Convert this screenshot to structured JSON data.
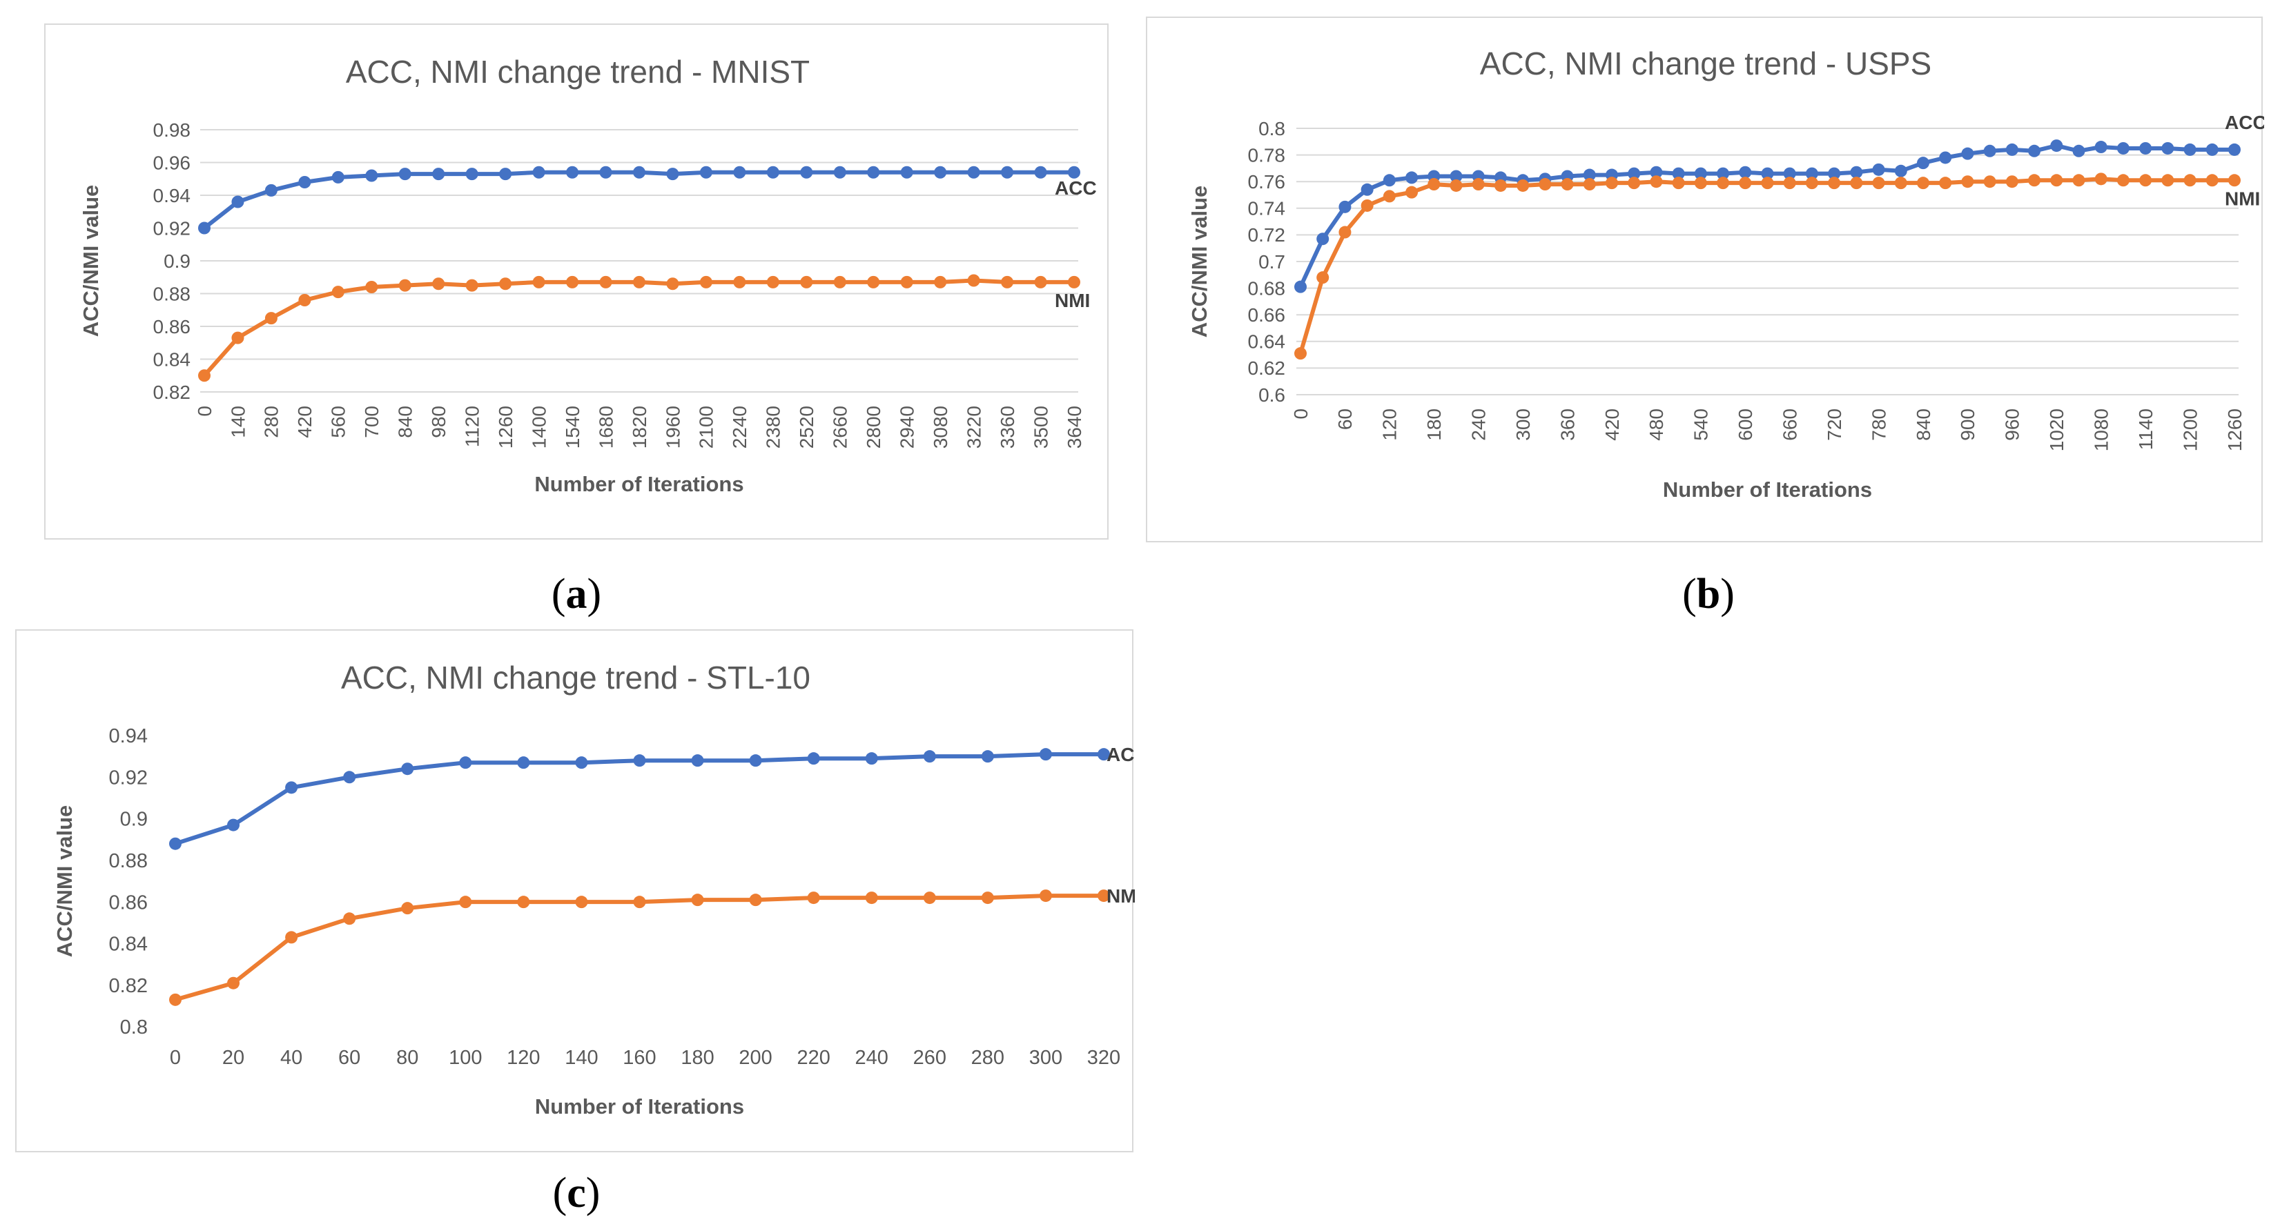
{
  "colors": {
    "acc": "#4472c4",
    "nmi": "#ed7d31",
    "grid": "#d9d9d9",
    "text": "#595959"
  },
  "captions": {
    "a": "a",
    "b": "b",
    "c": "c"
  },
  "chart_data": [
    {
      "type": "line",
      "title": "ACC, NMI change trend - MNIST",
      "xlabel": "Number of Iterations",
      "ylabel": "ACC/NMI value",
      "ylim": [
        0.82,
        0.98
      ],
      "yticks": [
        "0.82",
        "0.84",
        "0.86",
        "0.88",
        "0.9",
        "0.92",
        "0.94",
        "0.96",
        "0.98"
      ],
      "grid": true,
      "categories": [
        "0",
        "140",
        "280",
        "420",
        "560",
        "700",
        "840",
        "980",
        "1120",
        "1260",
        "1400",
        "1540",
        "1680",
        "1820",
        "1960",
        "2100",
        "2240",
        "2380",
        "2520",
        "2660",
        "2800",
        "2940",
        "3080",
        "3220",
        "3360",
        "3500",
        "3640"
      ],
      "series": [
        {
          "name": "ACC",
          "values": [
            0.92,
            0.936,
            0.943,
            0.948,
            0.951,
            0.952,
            0.953,
            0.953,
            0.953,
            0.953,
            0.954,
            0.954,
            0.954,
            0.954,
            0.953,
            0.954,
            0.954,
            0.954,
            0.954,
            0.954,
            0.954,
            0.954,
            0.954,
            0.954,
            0.954,
            0.954,
            0.954
          ]
        },
        {
          "name": "NMI",
          "values": [
            0.83,
            0.853,
            0.865,
            0.876,
            0.881,
            0.884,
            0.885,
            0.886,
            0.885,
            0.886,
            0.887,
            0.887,
            0.887,
            0.887,
            0.886,
            0.887,
            0.887,
            0.887,
            0.887,
            0.887,
            0.887,
            0.887,
            0.887,
            0.888,
            0.887,
            0.887,
            0.887
          ]
        }
      ]
    },
    {
      "type": "line",
      "title": "ACC, NMI change trend - USPS",
      "xlabel": "Number of Iterations",
      "ylabel": "ACC/NMI value",
      "ylim": [
        0.6,
        0.8
      ],
      "yticks": [
        "0.6",
        "0.62",
        "0.64",
        "0.66",
        "0.68",
        "0.7",
        "0.72",
        "0.74",
        "0.76",
        "0.78",
        "0.8"
      ],
      "grid": true,
      "categories": [
        "0",
        "",
        "60",
        "",
        "120",
        "",
        "180",
        "",
        "240",
        "",
        "300",
        "",
        "360",
        "",
        "420",
        "",
        "480",
        "",
        "540",
        "",
        "600",
        "",
        "660",
        "",
        "720",
        "",
        "780",
        "",
        "840",
        "",
        "900",
        "",
        "960",
        "",
        "1020",
        "",
        "1080",
        "",
        "1140",
        "",
        "1200",
        "",
        "1260"
      ],
      "series": [
        {
          "name": "ACC",
          "values": [
            0.681,
            0.717,
            0.741,
            0.754,
            0.761,
            0.763,
            0.764,
            0.764,
            0.764,
            0.763,
            0.761,
            0.762,
            0.764,
            0.765,
            0.765,
            0.766,
            0.767,
            0.766,
            0.766,
            0.766,
            0.767,
            0.766,
            0.766,
            0.766,
            0.766,
            0.767,
            0.769,
            0.768,
            0.774,
            0.778,
            0.781,
            0.783,
            0.784,
            0.783,
            0.787,
            0.783,
            0.786,
            0.785,
            0.785,
            0.785,
            0.784,
            0.784,
            0.784
          ]
        },
        {
          "name": "NMI",
          "values": [
            0.631,
            0.688,
            0.722,
            0.742,
            0.749,
            0.752,
            0.758,
            0.757,
            0.758,
            0.757,
            0.757,
            0.758,
            0.758,
            0.758,
            0.759,
            0.759,
            0.76,
            0.759,
            0.759,
            0.759,
            0.759,
            0.759,
            0.759,
            0.759,
            0.759,
            0.759,
            0.759,
            0.759,
            0.759,
            0.759,
            0.76,
            0.76,
            0.76,
            0.761,
            0.761,
            0.761,
            0.762,
            0.761,
            0.761,
            0.761,
            0.761,
            0.761,
            0.761
          ]
        }
      ]
    },
    {
      "type": "line",
      "title": "ACC, NMI change trend - STL-10",
      "xlabel": "Number of Iterations",
      "ylabel": "ACC/NMI value",
      "ylim": [
        0.8,
        0.94
      ],
      "yticks": [
        "0.8",
        "0.82",
        "0.84",
        "0.86",
        "0.88",
        "0.9",
        "0.92",
        "0.94"
      ],
      "grid": false,
      "categories": [
        "0",
        "20",
        "40",
        "60",
        "80",
        "100",
        "120",
        "140",
        "160",
        "180",
        "200",
        "220",
        "240",
        "260",
        "280",
        "300",
        "320"
      ],
      "series": [
        {
          "name": "ACC",
          "values": [
            0.888,
            0.897,
            0.915,
            0.92,
            0.924,
            0.927,
            0.927,
            0.927,
            0.928,
            0.928,
            0.928,
            0.929,
            0.929,
            0.93,
            0.93,
            0.931,
            0.931
          ]
        },
        {
          "name": "NMI",
          "values": [
            0.813,
            0.821,
            0.843,
            0.852,
            0.857,
            0.86,
            0.86,
            0.86,
            0.86,
            0.861,
            0.861,
            0.862,
            0.862,
            0.862,
            0.862,
            0.863,
            0.863
          ]
        }
      ]
    }
  ]
}
